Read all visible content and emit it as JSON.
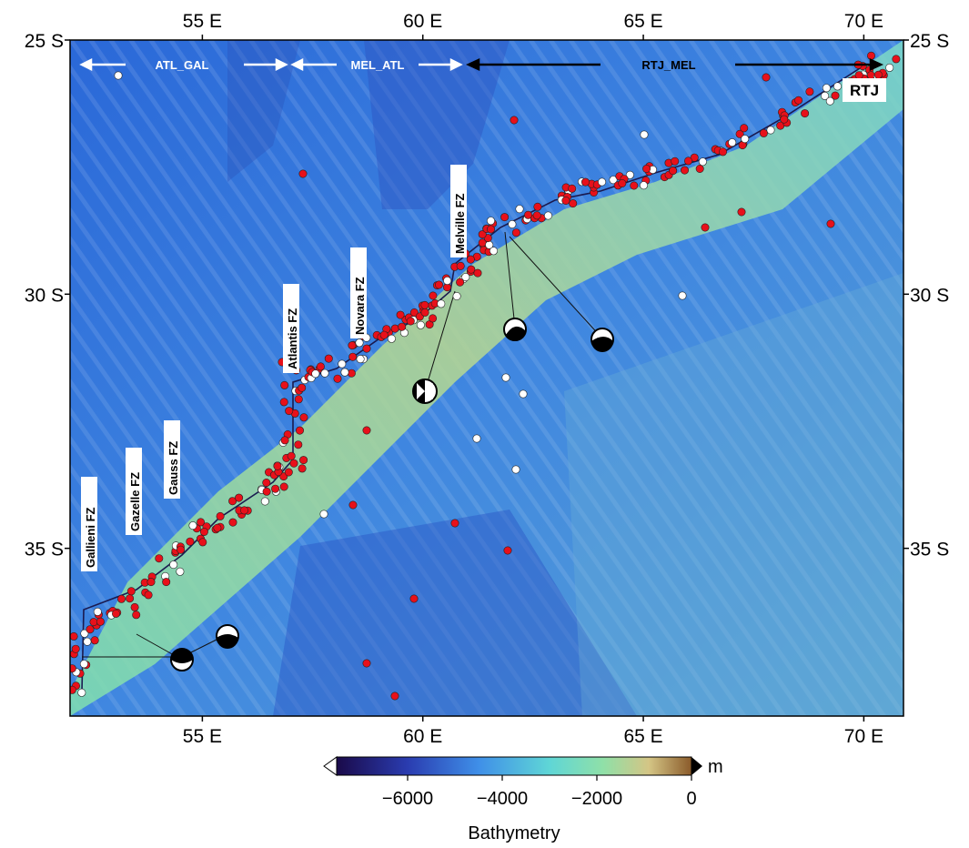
{
  "map": {
    "lon_range": [
      52,
      70.9
    ],
    "lat_range": [
      -25,
      -38.3
    ],
    "x_ticks": [
      {
        "lon": 55,
        "label": "55°E"
      },
      {
        "lon": 60,
        "label": "60°E"
      },
      {
        "lon": 65,
        "label": "65°E"
      },
      {
        "lon": 70,
        "label": "70°E"
      }
    ],
    "y_ticks": [
      {
        "lat": -25,
        "label": "25°S"
      },
      {
        "lat": -30,
        "label": "30°S"
      },
      {
        "lat": -35,
        "label": "35°S"
      }
    ],
    "segments": [
      {
        "label": "ATL_GAL",
        "lon": 54.3,
        "lat": -25.5
      },
      {
        "label": "MEL_ATL",
        "lon": 59.0,
        "lat": -25.5
      },
      {
        "label": "RTJ_MEL",
        "lon": 65.6,
        "lat": -25.5
      }
    ],
    "rtj_label": "RTJ",
    "fracture_zones": [
      {
        "label": "Gallieni FZ",
        "lon": 52.45,
        "lat": -34.9
      },
      {
        "label": "Gazelle FZ",
        "lon": 53.5,
        "lat": -34.0
      },
      {
        "label": "Gauss FZ",
        "lon": 54.1,
        "lat": -33.4
      },
      {
        "label": "Atlantis FZ",
        "lon": 56.85,
        "lat": -31.2
      },
      {
        "label": "Novara FZ",
        "lon": 58.55,
        "lat": -30.0
      },
      {
        "label": "Melville FZ",
        "lon": 60.85,
        "lat": -28.8
      }
    ],
    "colors": {
      "deep": "#1f3fb0",
      "mid": "#3a8fe0",
      "ridge": "#6fd7c8",
      "shallow": "#c9c07a",
      "event_red": "#e8101a",
      "event_white": "#ffffff"
    }
  },
  "colorbar": {
    "title": "Bathymetry",
    "unit": "m",
    "range": [
      -7500,
      0
    ],
    "ticks": [
      -6000,
      -4000,
      -2000,
      0
    ],
    "tick_labels": [
      "−6000",
      "−4000",
      "−2000",
      "0"
    ]
  }
}
